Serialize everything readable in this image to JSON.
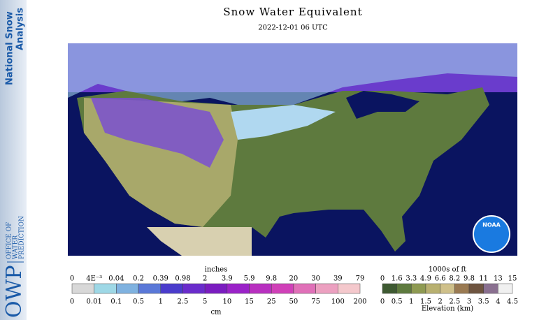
{
  "sidebar": {
    "product_lines": [
      "National Snow",
      "Analysis"
    ],
    "org_abbrev": "OWP",
    "org_lines": [
      "OFFICE OF",
      "WATER",
      "PREDICTION"
    ]
  },
  "header": {
    "title": "Snow Water Equivalent",
    "subtitle": "2022-12-01 06 UTC"
  },
  "map": {
    "logo": "NOAA"
  },
  "swe_legend": {
    "top_unit": "inches",
    "bottom_unit": "cm",
    "top_labels": [
      "0",
      "4E⁻³",
      "0.04",
      "0.2",
      "0.39",
      "0.98",
      "2",
      "3.9",
      "5.9",
      "9.8",
      "20",
      "30",
      "39",
      "79"
    ],
    "bottom_labels": [
      "0",
      "0.01",
      "0.1",
      "0.5",
      "1",
      "2.5",
      "5",
      "10",
      "15",
      "25",
      "50",
      "75",
      "100",
      "200"
    ],
    "colors": [
      "#d8d8d8",
      "#9ed8e6",
      "#7fb2e0",
      "#5a78d8",
      "#4a3ccc",
      "#6a2ccc",
      "#7a1cc0",
      "#9a22c8",
      "#b830c0",
      "#d040b8",
      "#e070b8",
      "#eca0c0",
      "#f4c8cc"
    ]
  },
  "elevation_legend": {
    "top_unit": "1000s of ft",
    "bottom_unit": "Elevation (km)",
    "top_labels": [
      "0",
      "1.6",
      "3.3",
      "4.9",
      "6.6",
      "8.2",
      "9.8",
      "11",
      "13",
      "15"
    ],
    "bottom_labels": [
      "0",
      "0.5",
      "1",
      "1.5",
      "2",
      "2.5",
      "3",
      "3.5",
      "4",
      "4.5"
    ],
    "colors": [
      "#3e5a32",
      "#5e7a3e",
      "#8e9a52",
      "#b8b070",
      "#cfc08a",
      "#9a7a52",
      "#6e5440",
      "#8a7090",
      "#f0f0f0"
    ]
  }
}
